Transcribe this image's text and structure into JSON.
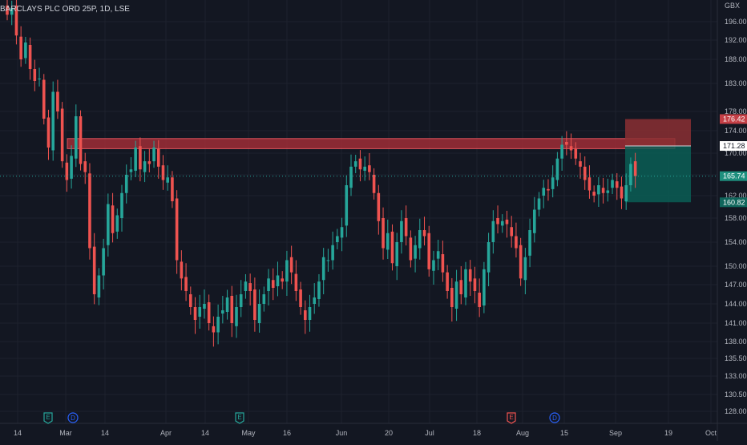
{
  "header": {
    "title": "BARCLAYS PLC ORD 25P, 1D, LSE"
  },
  "colors": {
    "background": "#131722",
    "grid": "#1e222d",
    "up": "#26a69a",
    "down": "#ef5350",
    "axis_text": "#b2b5be",
    "resistance_fill": "#b2303a",
    "stop_zone": "#8b2f33",
    "target_zone": "#0b5e55",
    "last_price": "#26a69a"
  },
  "chart_data": {
    "type": "candlestick",
    "currency": "GBX",
    "y_ticks": [
      "128.00",
      "130.50",
      "133.00",
      "135.50",
      "138.00",
      "141.00",
      "144.00",
      "147.00",
      "150.00",
      "154.00",
      "158.00",
      "162.00",
      "166.00",
      "170.00",
      "174.00",
      "178.00",
      "183.00",
      "188.00",
      "192.00",
      "196.00"
    ],
    "x_ticks": [
      "14",
      "Mar",
      "14",
      "Apr",
      "14",
      "May",
      "16",
      "Jun",
      "20",
      "Jul",
      "18",
      "Aug",
      "15",
      "Sep",
      "19",
      "Oct"
    ],
    "price_tags": [
      {
        "label": "176.42",
        "value": 176.42,
        "kind": "stop"
      },
      {
        "label": "171.28",
        "value": 171.28,
        "kind": "entry"
      },
      {
        "label": "165.74",
        "value": 165.74,
        "kind": "last"
      },
      {
        "label": "160.82",
        "value": 160.82,
        "kind": "target"
      }
    ],
    "resistance_band": {
      "low": 170.8,
      "high": 172.6
    },
    "position": {
      "entry": 171.28,
      "stop": 176.42,
      "target": 160.82
    },
    "event_markers": [
      {
        "label": "E",
        "kind": "earnings"
      },
      {
        "label": "D",
        "kind": "dividend"
      },
      {
        "label": "E",
        "kind": "earnings"
      },
      {
        "label": "E",
        "kind": "earnings-upcoming"
      },
      {
        "label": "D",
        "kind": "dividend"
      }
    ],
    "closes": [
      197.5,
      199.0,
      193.0,
      188.0,
      191.5,
      186.0,
      183.5,
      184.0,
      176.5,
      171.0,
      181.5,
      178.0,
      168.5,
      165.0,
      169.5,
      177.0,
      168.0,
      166.5,
      153.0,
      145.5,
      148.5,
      153.0,
      160.5,
      155.5,
      158.5,
      162.5,
      166.0,
      167.0,
      171.0,
      167.0,
      168.5,
      168.0,
      171.0,
      167.5,
      165.0,
      165.5,
      161.0,
      151.0,
      148.0,
      146.0,
      143.5,
      141.5,
      143.5,
      144.0,
      141.0,
      139.5,
      142.0,
      143.0,
      145.0,
      141.0,
      143.5,
      145.5,
      147.5,
      146.0,
      141.5,
      144.0,
      145.5,
      148.0,
      146.5,
      148.5,
      147.5,
      151.0,
      149.0,
      146.0,
      143.5,
      141.5,
      143.5,
      145.0,
      147.5,
      151.5,
      151.0,
      153.5,
      155.0,
      156.5,
      164.0,
      167.5,
      168.5,
      167.0,
      167.5,
      166.5,
      162.5,
      157.5,
      153.0,
      155.5,
      150.5,
      154.0,
      157.5,
      155.0,
      151.0,
      153.5,
      156.0,
      155.0,
      149.5,
      151.0,
      152.5,
      149.0,
      146.0,
      143.5,
      147.5,
      145.5,
      149.5,
      147.5,
      146.0,
      143.5,
      149.5,
      154.0,
      157.5,
      157.0,
      157.5,
      157.0,
      155.0,
      153.0,
      148.0,
      151.5,
      156.0,
      159.5,
      161.5,
      163.5,
      163.0,
      165.5,
      169.0,
      171.5,
      171.5,
      170.5,
      169.0,
      167.5,
      165.0,
      163.0,
      162.0,
      164.0,
      162.5,
      163.0,
      165.0,
      163.5,
      161.5,
      164.0,
      168.0,
      165.74
    ]
  }
}
